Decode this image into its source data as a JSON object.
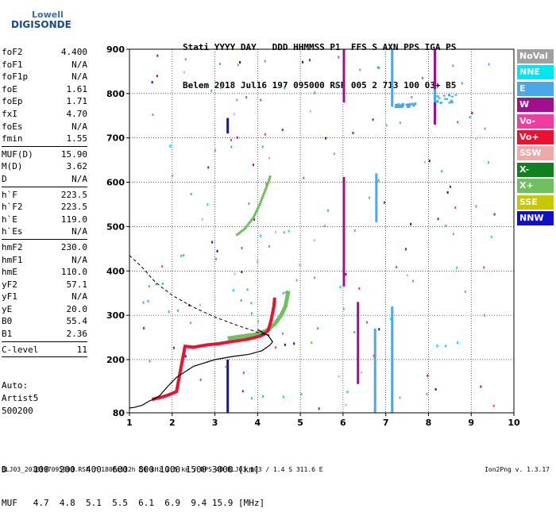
{
  "logo": {
    "top": "Lowell",
    "bottom": "DIGISONDE"
  },
  "header": {
    "labels": "Stati YYYY DAY   DDD HHMMSS P1  FFS S AXN PPS IGA PS",
    "values": "Belem 2018 Jul16 197 095000 RSF 005 2 713 100 03+ B5"
  },
  "params_group1": [
    {
      "name": "foF2",
      "value": "4.400"
    },
    {
      "name": "foF1",
      "value": "N/A"
    },
    {
      "name": "foF1p",
      "value": "N/A"
    },
    {
      "name": "foE",
      "value": "1.61"
    },
    {
      "name": "foEp",
      "value": "1.71"
    },
    {
      "name": "fxI",
      "value": "4.70"
    },
    {
      "name": "foEs",
      "value": "N/A"
    },
    {
      "name": "fmin",
      "value": "1.55"
    }
  ],
  "params_group2": [
    {
      "name": "MUF(D)",
      "value": "15.90"
    },
    {
      "name": "M(D)",
      "value": "3.62"
    },
    {
      "name": "D",
      "value": "N/A"
    }
  ],
  "params_group3": [
    {
      "name": "h`F",
      "value": "223.5"
    },
    {
      "name": "h`F2",
      "value": "223.5"
    },
    {
      "name": "h`E",
      "value": "119.0"
    },
    {
      "name": "h`Es",
      "value": "N/A"
    }
  ],
  "params_group4": [
    {
      "name": "hmF2",
      "value": "230.0"
    },
    {
      "name": "hmF1",
      "value": "N/A"
    },
    {
      "name": "hmE",
      "value": "110.0"
    },
    {
      "name": "yF2",
      "value": "57.1"
    },
    {
      "name": "yF1",
      "value": "N/A"
    },
    {
      "name": "yE",
      "value": "20.0"
    },
    {
      "name": "B0",
      "value": "55.4"
    },
    {
      "name": "B1",
      "value": "2.36"
    }
  ],
  "params_group5": [
    {
      "name": "C-level",
      "value": "11"
    }
  ],
  "auto_block": {
    "line1": "Auto:",
    "line2": "Artist5",
    "line3": "500200"
  },
  "legend": [
    {
      "label": "NoVal",
      "color": "#a0a0a0"
    },
    {
      "label": "NNE",
      "color": "#00e5ee"
    },
    {
      "label": "E",
      "color": "#4aa8e8"
    },
    {
      "label": "W",
      "color": "#a0108c"
    },
    {
      "label": "Vo-",
      "color": "#ee3ca0"
    },
    {
      "label": "Vo+",
      "color": "#ee1030"
    },
    {
      "label": "SSW",
      "color": "#f0a8a8"
    },
    {
      "label": "X-",
      "color": "#108020"
    },
    {
      "label": "X+",
      "color": "#70c060"
    },
    {
      "label": "SSE",
      "color": "#c8c800"
    },
    {
      "label": "NNW",
      "color": "#1010c8"
    }
  ],
  "muf_table": {
    "d_line": "D     100  200  400  600  800 1000 1500 3000 [km]",
    "muf_line": "MUF   4.7  4.8  5.1  5.5  6.1  6.9  9.4 15.9 [MHz]"
  },
  "footer": {
    "left": "BLJ03_2018197095000.RSF / 180fx512h 50 kHz 2.5 km / DPS-4D BLJ03 103 / 1.4 S 311.6 E",
    "right": "Ion2Png v. 1.3.17"
  },
  "chart_data": {
    "type": "scatter",
    "xlim": [
      1,
      10
    ],
    "ylim": [
      80,
      900
    ],
    "xticks": [
      1,
      2,
      3,
      4,
      5,
      6,
      7,
      8,
      9,
      10
    ],
    "yticks": [
      80,
      200,
      300,
      400,
      500,
      600,
      700,
      800,
      900
    ],
    "grid": true,
    "profile_solid": [
      [
        1.0,
        91
      ],
      [
        1.1,
        92
      ],
      [
        1.3,
        97
      ],
      [
        1.45,
        106
      ],
      [
        1.55,
        110
      ],
      [
        1.7,
        118
      ],
      [
        1.9,
        140
      ],
      [
        2.1,
        160
      ],
      [
        2.5,
        185
      ],
      [
        3.0,
        200
      ],
      [
        3.4,
        207
      ],
      [
        3.8,
        212
      ],
      [
        4.1,
        220
      ],
      [
        4.28,
        232
      ],
      [
        4.35,
        240
      ],
      [
        4.25,
        254
      ],
      [
        4.1,
        262
      ],
      [
        4.0,
        268
      ]
    ],
    "profile_dashed": [
      [
        1.0,
        435
      ],
      [
        1.3,
        408
      ],
      [
        1.6,
        375
      ],
      [
        2.0,
        345
      ],
      [
        2.5,
        318
      ],
      [
        3.0,
        296
      ],
      [
        3.5,
        278
      ],
      [
        3.9,
        265
      ],
      [
        4.1,
        258
      ],
      [
        4.3,
        255
      ]
    ],
    "trace_f2": [
      [
        1.53,
        110
      ],
      [
        1.6,
        112
      ],
      [
        1.7,
        114
      ],
      [
        1.9,
        120
      ],
      [
        2.1,
        128
      ],
      [
        2.3,
        230
      ],
      [
        2.5,
        228
      ],
      [
        2.8,
        233
      ],
      [
        3.1,
        236
      ],
      [
        3.4,
        241
      ],
      [
        3.7,
        245
      ],
      [
        3.9,
        249
      ],
      [
        4.05,
        253
      ],
      [
        4.15,
        257
      ],
      [
        4.25,
        266
      ],
      [
        4.32,
        290
      ],
      [
        4.38,
        320
      ],
      [
        4.4,
        340
      ]
    ],
    "trace_x": [
      [
        3.3,
        248
      ],
      [
        3.6,
        252
      ],
      [
        3.9,
        256
      ],
      [
        4.2,
        265
      ],
      [
        4.4,
        280
      ],
      [
        4.55,
        300
      ],
      [
        4.65,
        320
      ],
      [
        4.7,
        345
      ],
      [
        4.72,
        355
      ]
    ],
    "trace_x_upper": [
      [
        3.5,
        480
      ],
      [
        3.7,
        495
      ],
      [
        3.9,
        520
      ],
      [
        4.05,
        550
      ],
      [
        4.15,
        575
      ],
      [
        4.25,
        600
      ],
      [
        4.3,
        615
      ]
    ],
    "w_bars": [
      {
        "x": 6.02,
        "y0": 365,
        "y1": 612
      },
      {
        "x": 6.02,
        "y0": 780,
        "y1": 900
      },
      {
        "x": 6.35,
        "y0": 145,
        "y1": 330
      },
      {
        "x": 8.15,
        "y0": 730,
        "y1": 900
      }
    ],
    "e_bars": [
      {
        "x": 6.75,
        "y0": 80,
        "y1": 270
      },
      {
        "x": 6.78,
        "y0": 510,
        "y1": 620
      },
      {
        "x": 7.15,
        "y0": 80,
        "y1": 320
      },
      {
        "x": 7.15,
        "y0": 770,
        "y1": 900
      },
      {
        "x": 8.15,
        "y0": 780,
        "y1": 810
      }
    ],
    "nnw_bars": [
      {
        "x": 3.3,
        "y0": 80,
        "y1": 200
      },
      {
        "x": 3.3,
        "y0": 710,
        "y1": 745
      }
    ]
  }
}
